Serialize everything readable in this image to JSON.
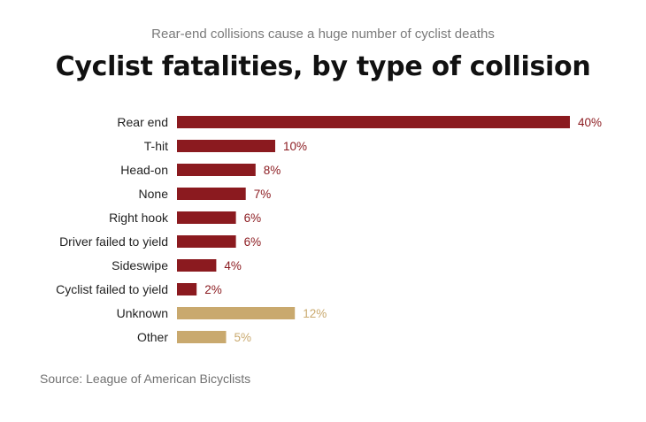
{
  "subtitle": "Rear-end collisions cause a huge number of cyclist deaths",
  "title": "Cyclist fatalities, by type of collision",
  "source": "Source: League of American Bicyclists",
  "colors": {
    "known": "#8b1a1f",
    "unknown": "#c9a96e"
  },
  "chart_data": {
    "type": "bar",
    "orientation": "horizontal",
    "title": "Cyclist fatalities, by type of collision",
    "subtitle": "Rear-end collisions cause a huge number of cyclist deaths",
    "categories": [
      "Rear end",
      "T-hit",
      "Head-on",
      "None",
      "Right hook",
      "Driver failed to yield",
      "Sideswipe",
      "Cyclist failed to yield",
      "Unknown",
      "Other"
    ],
    "values": [
      40,
      10,
      8,
      7,
      6,
      6,
      4,
      2,
      12,
      5
    ],
    "value_labels": [
      "40%",
      "10%",
      "8%",
      "7%",
      "6%",
      "6%",
      "4%",
      "2%",
      "12%",
      "5%"
    ],
    "groups": [
      "known",
      "known",
      "known",
      "known",
      "known",
      "known",
      "known",
      "known",
      "unknown",
      "unknown"
    ],
    "xlim": [
      0,
      40
    ],
    "grid": false,
    "legend": "none"
  }
}
